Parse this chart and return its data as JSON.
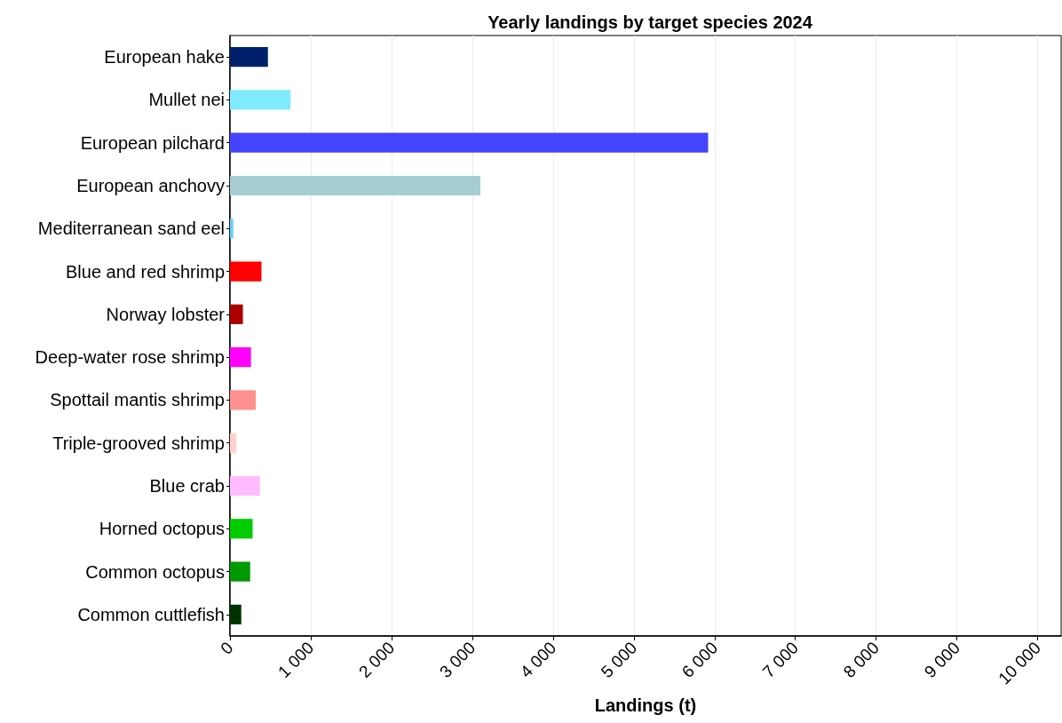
{
  "chart_data": {
    "type": "bar",
    "orientation": "horizontal",
    "title": "Yearly landings by target species 2024",
    "xlabel": "Landings (t)",
    "categories": [
      "European hake",
      "Mullet nei",
      "European pilchard",
      "European anchovy",
      "Mediterranean sand eel",
      "Blue and red shrimp",
      "Norway lobster",
      "Deep-water rose shrimp",
      "Spottail mantis shrimp",
      "Triple-grooved shrimp",
      "Blue crab",
      "Horned octopus",
      "Common octopus",
      "Common cuttlefish"
    ],
    "values": [
      470,
      750,
      5920,
      3100,
      40,
      390,
      160,
      260,
      320,
      80,
      370,
      280,
      250,
      140
    ],
    "colors": [
      "#00206b",
      "#80eaff",
      "#4444ff",
      "#a6cdd4",
      "#66ccff",
      "#ff0000",
      "#aa0000",
      "#ff00ff",
      "#ff9090",
      "#ffd0d0",
      "#ffbbff",
      "#00cc00",
      "#009900",
      "#003300"
    ],
    "xlim": [
      0,
      10290
    ],
    "xticks": [
      0,
      {
        "value": 1000,
        "label": "1 000"
      },
      {
        "value": 2000,
        "label": "2 000"
      },
      {
        "value": 3000,
        "label": "3 000"
      },
      {
        "value": 4000,
        "label": "4 000"
      },
      {
        "value": 5000,
        "label": "5 000"
      },
      {
        "value": 6000,
        "label": "6 000"
      },
      {
        "value": 7000,
        "label": "7 000"
      },
      {
        "value": 8000,
        "label": "8 000"
      },
      {
        "value": 9000,
        "label": "9 000"
      },
      {
        "value": 10000,
        "label": "10 000"
      }
    ],
    "grid": "x"
  }
}
